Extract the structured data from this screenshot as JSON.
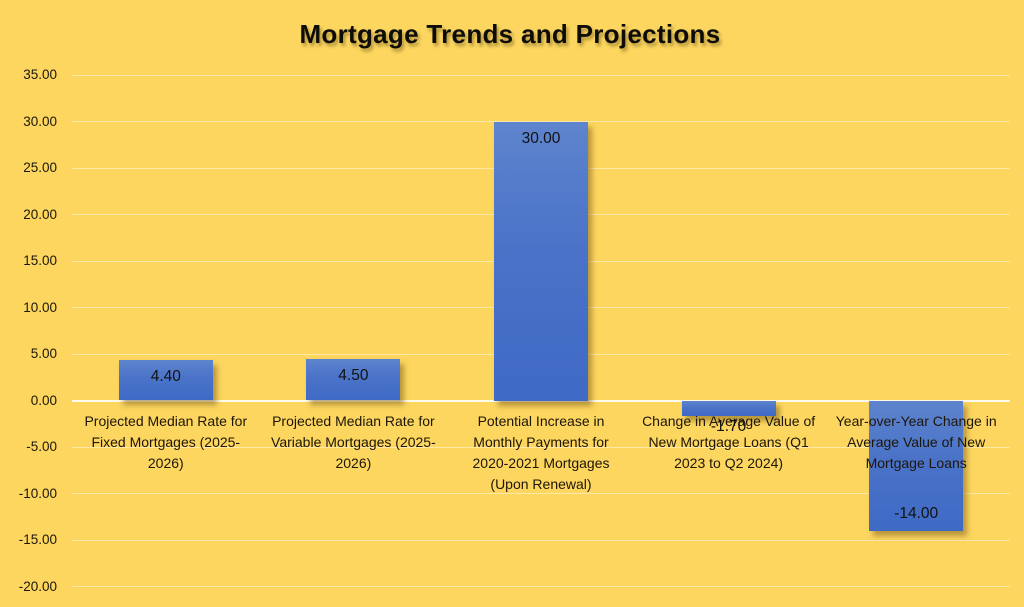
{
  "chart_data": {
    "type": "bar",
    "title": "Mortgage Trends and Projections",
    "categories": [
      "Projected Median Rate for Fixed Mortgages (2025-2026)",
      "Projected Median Rate for Variable Mortgages (2025-2026)",
      "Potential Increase in Monthly Payments for 2020-2021 Mortgages (Upon Renewal)",
      "Change in Average Value of New Mortgage Loans (Q1 2023 to Q2 2024)",
      "Year-over-Year Change in Average Value of New Mortgage Loans"
    ],
    "values": [
      4.4,
      4.5,
      30.0,
      -1.7,
      -14.0
    ],
    "value_labels": [
      "4.40",
      "4.50",
      "30.00",
      "-1.70",
      "-14.00"
    ],
    "y_axis": {
      "min": -20,
      "max": 35,
      "step": 5,
      "tick_labels": [
        "35.00",
        "30.00",
        "25.00",
        "20.00",
        "15.00",
        "10.00",
        "5.00",
        "0.00",
        "-5.00",
        "-10.00",
        "-15.00",
        "-20.00"
      ]
    },
    "ylim": [
      -20,
      35
    ],
    "grid": true,
    "legend": false,
    "colors": {
      "background": "#FCD65F",
      "bar_fill_top": "#5E84CD",
      "bar_fill_bottom": "#3F6AC5",
      "gridline": "#FFE9A8",
      "zero_line": "#FFFDF2",
      "text": "#1D1609"
    }
  }
}
